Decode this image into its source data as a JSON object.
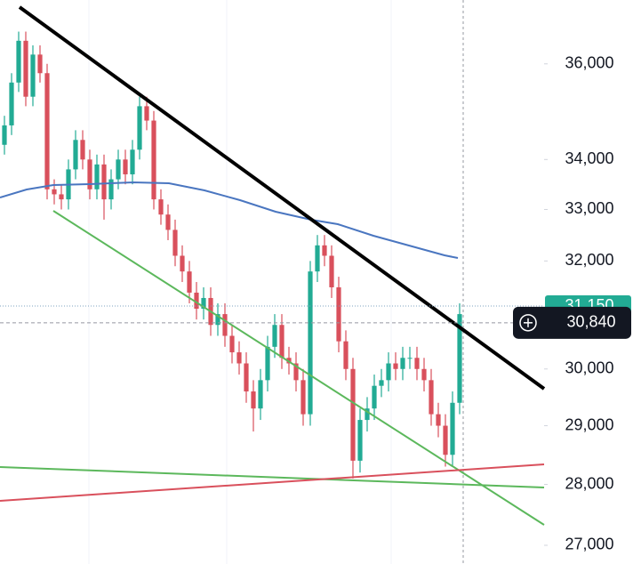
{
  "chart_data": {
    "type": "candlestick",
    "log": true,
    "ylim": [
      26700,
      37400
    ],
    "yticks": [
      {
        "value": 27000,
        "label": "27,000"
      },
      {
        "value": 28000,
        "label": "28,000"
      },
      {
        "value": 29000,
        "label": "29,000"
      },
      {
        "value": 30000,
        "label": "30,000"
      },
      {
        "value": 32000,
        "label": "32,000"
      },
      {
        "value": 33000,
        "label": "33,000"
      },
      {
        "value": 34000,
        "label": "34,000"
      },
      {
        "value": 36000,
        "label": "36,000"
      }
    ],
    "up_color": "#22ab94",
    "down_color": "#d9505c",
    "open": [
      34300,
      34700,
      35600,
      36500,
      35300,
      36200,
      35800,
      33400,
      33300,
      33200,
      33800,
      34400,
      34000,
      33400,
      33900,
      33200,
      33600,
      34000,
      33700,
      34200,
      35100,
      34800,
      33200,
      32900,
      32600,
      32100,
      31800,
      31400,
      31100,
      31300,
      30800,
      31000,
      30600,
      30300,
      30100,
      29600,
      29300,
      29800,
      30400,
      30800,
      30200,
      30100,
      29800,
      29200,
      31800,
      32300,
      32100,
      31500,
      30500,
      30000,
      28400,
      29100,
      29300,
      29700,
      29800,
      30100,
      30000,
      30200,
      30200,
      30000,
      29800,
      29200,
      29000,
      28500,
      29400
    ],
    "high": [
      34900,
      35800,
      36700,
      36700,
      36400,
      36400,
      36000,
      33600,
      33500,
      34000,
      34600,
      34600,
      34200,
      34100,
      34100,
      33800,
      34200,
      34200,
      34400,
      35300,
      35300,
      35000,
      33400,
      33100,
      32800,
      32300,
      32000,
      31600,
      31500,
      31500,
      31200,
      31200,
      30800,
      30500,
      30300,
      29800,
      30000,
      30600,
      31000,
      31000,
      30400,
      30300,
      30000,
      32000,
      32500,
      32500,
      32300,
      31700,
      30700,
      30200,
      29300,
      29500,
      29900,
      30000,
      30300,
      30300,
      30400,
      30400,
      30400,
      30200,
      30000,
      29400,
      29200,
      29600,
      31200
    ],
    "low": [
      34100,
      34500,
      35400,
      35100,
      35100,
      35600,
      33200,
      33100,
      33000,
      33000,
      33600,
      33800,
      33200,
      33200,
      32800,
      33000,
      33400,
      33500,
      33500,
      34000,
      34600,
      33000,
      32700,
      32400,
      31900,
      31600,
      31200,
      30900,
      30900,
      30600,
      30600,
      30400,
      30100,
      29900,
      29400,
      28900,
      29100,
      29600,
      30200,
      30000,
      29900,
      29600,
      29000,
      29000,
      31600,
      31900,
      31300,
      30300,
      29800,
      28100,
      28200,
      28900,
      29100,
      29500,
      29600,
      29800,
      29800,
      30000,
      29800,
      29600,
      29000,
      28800,
      28300,
      28300,
      29200
    ],
    "close": [
      34700,
      35600,
      36500,
      35300,
      36200,
      35800,
      33400,
      33300,
      33200,
      33800,
      34400,
      34000,
      33400,
      33900,
      33200,
      33600,
      34000,
      33700,
      34200,
      35100,
      34800,
      33200,
      32900,
      32600,
      32100,
      31800,
      31400,
      31100,
      31300,
      30800,
      31000,
      30600,
      30300,
      30100,
      29600,
      29300,
      29800,
      30400,
      30800,
      30200,
      30100,
      29800,
      29200,
      31800,
      32300,
      32100,
      31500,
      30500,
      30000,
      28400,
      29100,
      29300,
      29700,
      29800,
      30100,
      30000,
      30200,
      30200,
      30000,
      29800,
      29200,
      29000,
      28500,
      29400,
      31000
    ],
    "price_labels": [
      {
        "value": 31150,
        "label": "31,150",
        "color": "#22ab94"
      },
      {
        "value": 30840,
        "label": "30,840",
        "color": "#131722"
      }
    ]
  }
}
